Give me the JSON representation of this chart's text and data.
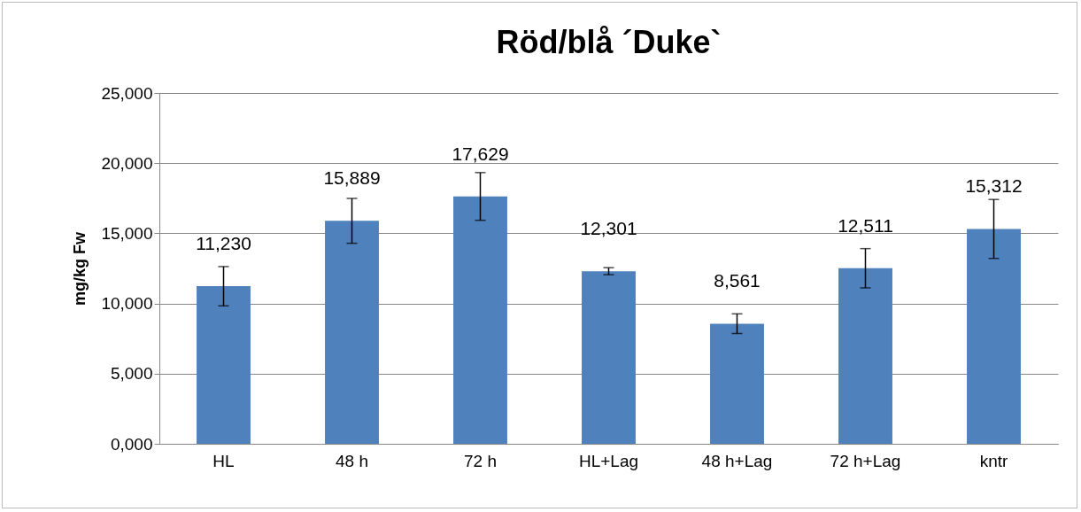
{
  "chart_data": {
    "type": "bar",
    "title": "Röd/blå ´Duke`",
    "ylabel": "mg/kg Fw",
    "categories": [
      "HL",
      "48 h",
      "72 h",
      "HL+Lag",
      "48 h+Lag",
      "72 h+Lag",
      "kntr"
    ],
    "values": [
      11230,
      15889,
      17629,
      12301,
      8561,
      12511,
      15312
    ],
    "value_labels": [
      "11,230",
      "15,889",
      "17,629",
      "12,301",
      "8,561",
      "12,511",
      "15,312"
    ],
    "errors": [
      1400,
      1600,
      1700,
      250,
      700,
      1400,
      2100
    ],
    "color": "#4f81bd",
    "ylim": [
      0,
      25000
    ],
    "yticks": [
      {
        "value": 0,
        "label": "0,000"
      },
      {
        "value": 5000,
        "label": "5,000"
      },
      {
        "value": 10000,
        "label": "10,000"
      },
      {
        "value": 15000,
        "label": "15,000"
      },
      {
        "value": 20000,
        "label": "20,000"
      },
      {
        "value": 25000,
        "label": "25,000"
      }
    ],
    "grid": true
  }
}
